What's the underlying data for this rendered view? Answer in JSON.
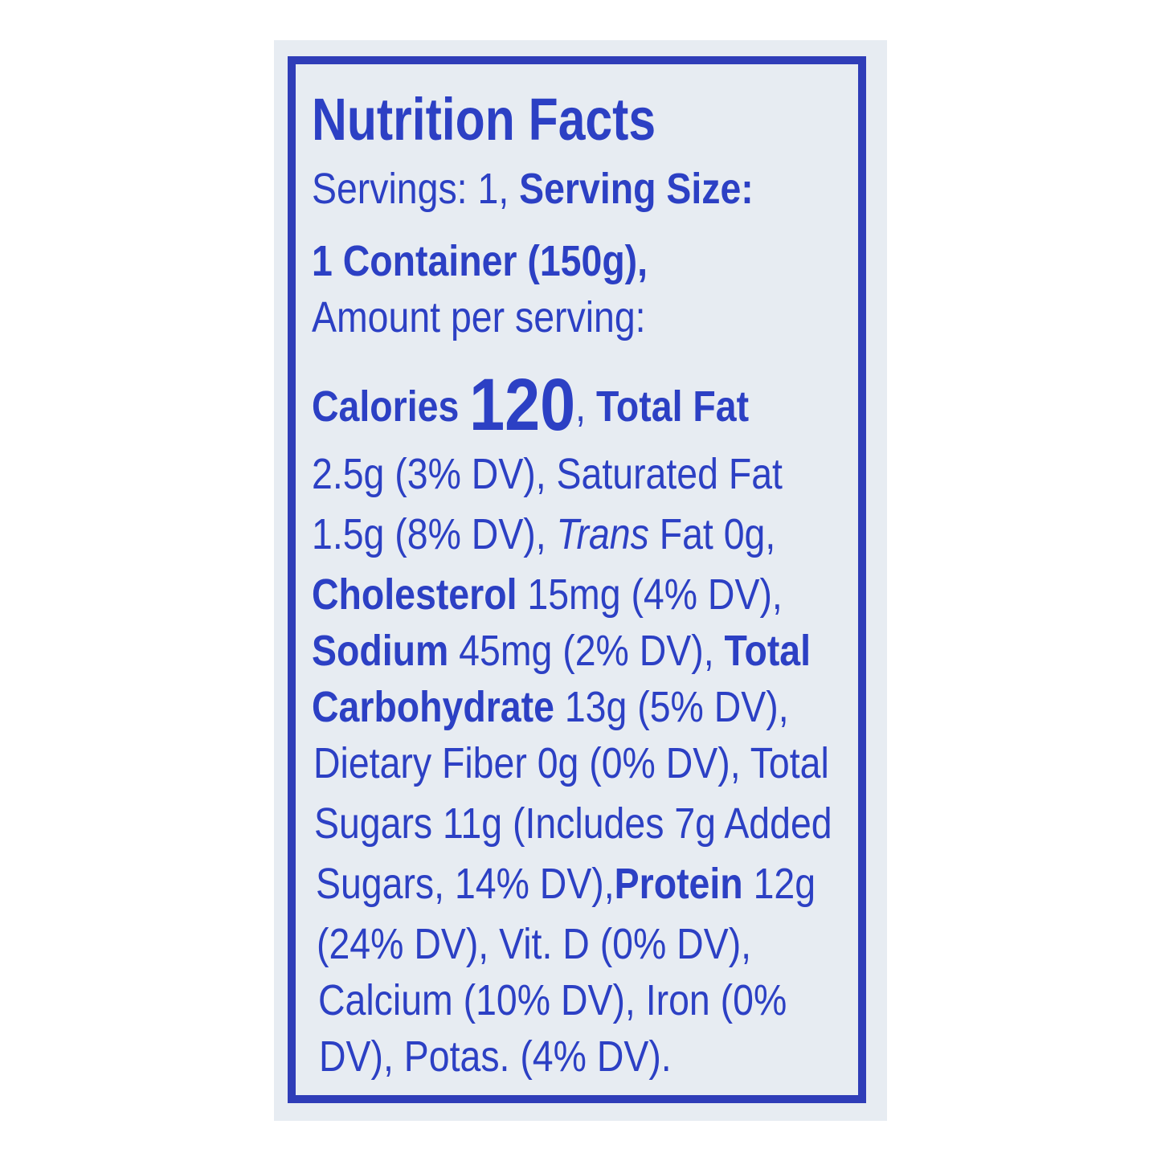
{
  "label": {
    "title": "Nutrition Facts",
    "text_color": "#2c40c4",
    "background_color": "#e7ecf2",
    "lines": [
      [
        {
          "t": "Servings: 1, ",
          "s": "r"
        },
        {
          "t": "Serving Size:",
          "s": "b"
        }
      ],
      [
        {
          "t": "1 Container (150g),",
          "s": "b"
        }
      ],
      [
        {
          "t": "Amount per serving:",
          "s": "r"
        }
      ],
      [
        {
          "t": "Calories ",
          "s": "b"
        },
        {
          "t": "120",
          "s": "big"
        },
        {
          "t": ", ",
          "s": "r"
        },
        {
          "t": "Total Fat",
          "s": "b"
        }
      ],
      [
        {
          "t": "2.5g (3% DV), Saturated Fat",
          "s": "r"
        }
      ],
      [
        {
          "t": "1.5g (8% DV), ",
          "s": "r"
        },
        {
          "t": "Trans",
          "s": "i"
        },
        {
          "t": " Fat 0g,",
          "s": "r"
        }
      ],
      [
        {
          "t": "Cholesterol",
          "s": "b"
        },
        {
          "t": " 15mg (4% DV),",
          "s": "r"
        }
      ],
      [
        {
          "t": "Sodium",
          "s": "b"
        },
        {
          "t": " 45mg (2% DV), ",
          "s": "r"
        },
        {
          "t": "Total",
          "s": "b"
        }
      ],
      [
        {
          "t": "Carbohydrate",
          "s": "b"
        },
        {
          "t": " 13g (5% DV),",
          "s": "r"
        }
      ],
      [
        {
          "t": "Dietary Fiber 0g (0% DV), Total",
          "s": "r"
        }
      ],
      [
        {
          "t": "Sugars 11g (Includes 7g Added",
          "s": "r"
        }
      ],
      [
        {
          "t": "Sugars, 14% DV),",
          "s": "r"
        },
        {
          "t": "Protein",
          "s": "b"
        },
        {
          "t": " 12g",
          "s": "r"
        }
      ],
      [
        {
          "t": "(24% DV), Vit. D (0% DV),",
          "s": "r"
        }
      ],
      [
        {
          "t": "Calcium (10% DV), Iron (0%",
          "s": "r"
        }
      ],
      [
        {
          "t": "DV), Potas. (4% DV).",
          "s": "r"
        }
      ]
    ]
  }
}
